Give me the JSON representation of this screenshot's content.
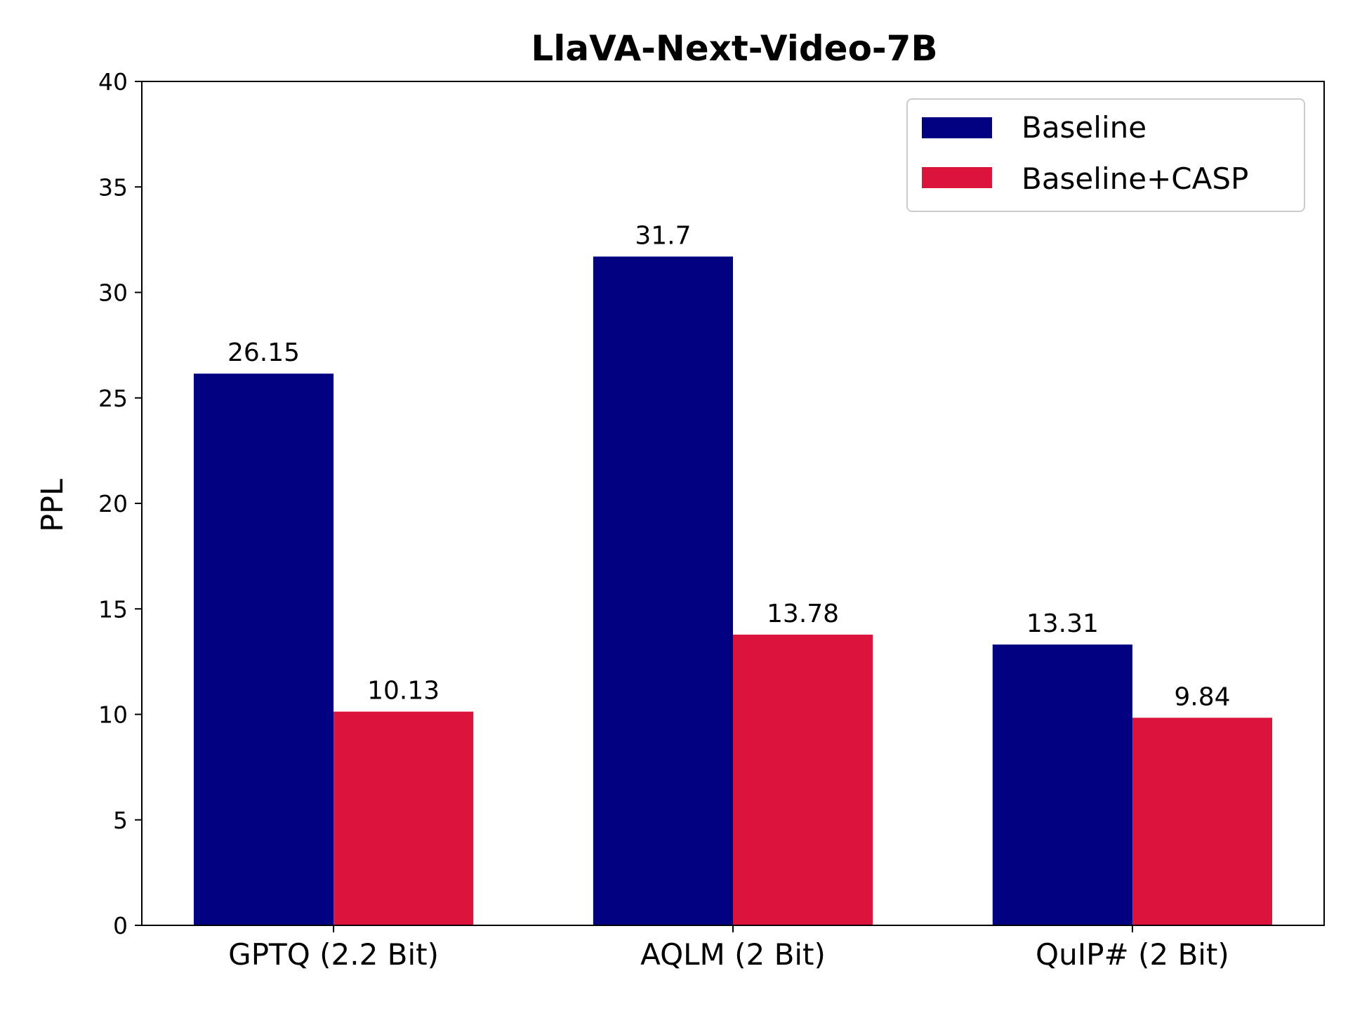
{
  "chart_data": {
    "type": "bar",
    "title": "LlaVA-Next-Video-7B",
    "xlabel": "",
    "ylabel": "PPL",
    "ylim": [
      0,
      40
    ],
    "yticks": [
      0,
      5,
      10,
      15,
      20,
      25,
      30,
      35,
      40
    ],
    "categories": [
      "GPTQ (2.2 Bit)",
      "AQLM (2 Bit)",
      "QuIP# (2 Bit)"
    ],
    "series": [
      {
        "name": "Baseline",
        "color": "#000080",
        "values": [
          26.15,
          31.7,
          13.31
        ],
        "labels": [
          "26.15",
          "31.7",
          "13.31"
        ]
      },
      {
        "name": "Baseline+CASP",
        "color": "#DC143C",
        "values": [
          10.13,
          13.78,
          9.84
        ],
        "labels": [
          "10.13",
          "13.78",
          "9.84"
        ]
      }
    ],
    "legend_position": "top-right",
    "grid": false
  }
}
